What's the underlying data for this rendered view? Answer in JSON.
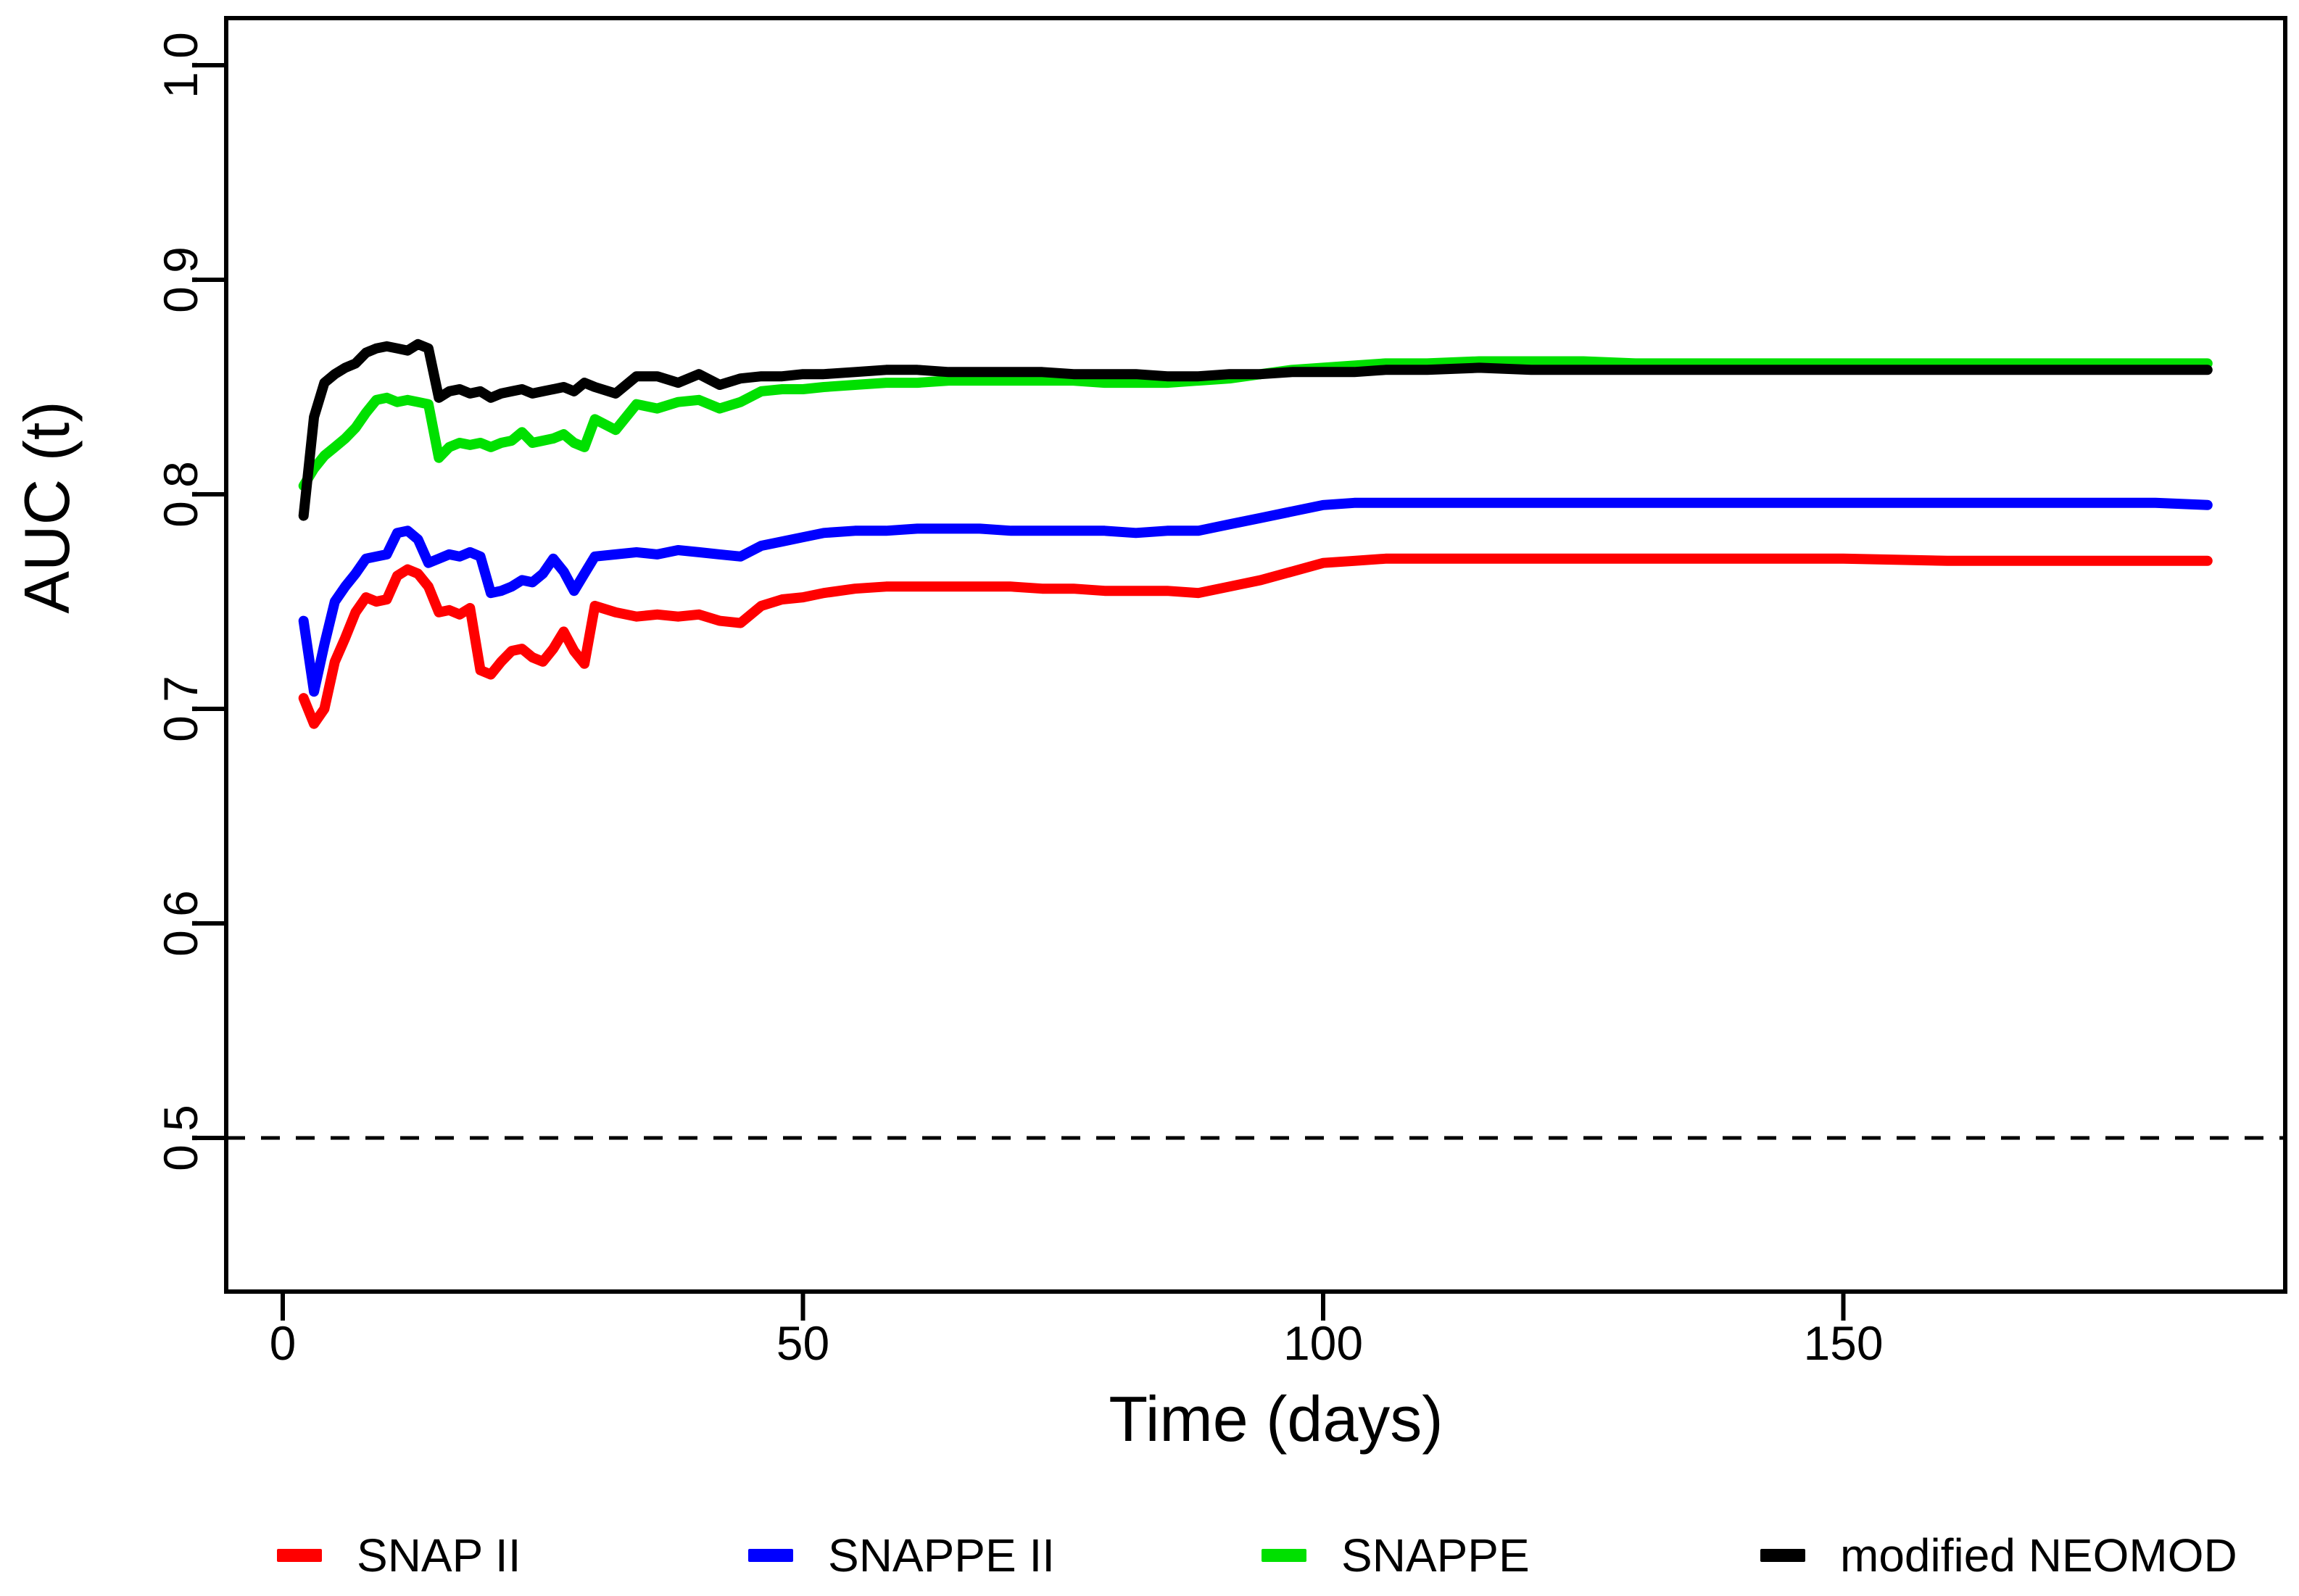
{
  "figure": {
    "background_color": "#ffffff",
    "y_axis": {
      "label": "AUC (t)",
      "tick_labels": [
        "1.0",
        "0.9",
        "0.8",
        "0.7",
        "0.6",
        "0.5"
      ]
    },
    "x_axis": {
      "label": "Time (days)",
      "tick_labels": [
        "0",
        "50",
        "100",
        "150"
      ]
    },
    "reference_line": {
      "value": 0.5,
      "style": "dashed",
      "color": "#000000"
    }
  },
  "chart_data": {
    "type": "line",
    "title": "",
    "xlabel": "Time (days)",
    "ylabel": "AUC (t)",
    "xlim": [
      -5.5,
      192.5
    ],
    "ylim": [
      0.428,
      1.022
    ],
    "x_ticks": [
      0,
      50,
      100,
      150
    ],
    "y_ticks": [
      1.0,
      0.9,
      0.8,
      0.7,
      0.6,
      0.5
    ],
    "reference_y": 0.5,
    "grid": false,
    "legend_position": "bottom",
    "x": [
      2,
      3,
      4,
      5,
      6,
      7,
      8,
      9,
      10,
      11,
      12,
      13,
      14,
      15,
      16,
      17,
      18,
      19,
      20,
      21,
      22,
      23,
      24,
      25,
      26,
      27,
      28,
      29,
      30,
      32,
      34,
      36,
      38,
      40,
      42,
      44,
      46,
      48,
      50,
      52,
      55,
      58,
      61,
      64,
      67,
      70,
      73,
      76,
      79,
      82,
      85,
      88,
      91,
      94,
      97,
      100,
      103,
      106,
      110,
      115,
      120,
      125,
      130,
      140,
      150,
      160,
      170,
      180,
      185
    ],
    "series": [
      {
        "name": "SNAP II",
        "color": "#ff0000",
        "values": [
          0.705,
          0.693,
          0.7,
          0.722,
          0.733,
          0.745,
          0.752,
          0.75,
          0.751,
          0.762,
          0.765,
          0.763,
          0.757,
          0.745,
          0.746,
          0.744,
          0.747,
          0.718,
          0.716,
          0.722,
          0.727,
          0.728,
          0.724,
          0.722,
          0.728,
          0.736,
          0.727,
          0.721,
          0.748,
          0.745,
          0.743,
          0.744,
          0.743,
          0.744,
          0.741,
          0.74,
          0.748,
          0.751,
          0.752,
          0.754,
          0.756,
          0.757,
          0.757,
          0.757,
          0.757,
          0.757,
          0.756,
          0.756,
          0.755,
          0.755,
          0.755,
          0.754,
          0.757,
          0.76,
          0.764,
          0.768,
          0.769,
          0.77,
          0.77,
          0.77,
          0.77,
          0.77,
          0.77,
          0.77,
          0.77,
          0.769,
          0.769,
          0.769,
          0.769
        ]
      },
      {
        "name": "SNAPPE II",
        "color": "#0000ff",
        "values": [
          0.741,
          0.708,
          0.73,
          0.75,
          0.757,
          0.763,
          0.77,
          0.771,
          0.772,
          0.782,
          0.783,
          0.779,
          0.768,
          0.77,
          0.772,
          0.771,
          0.773,
          0.771,
          0.754,
          0.755,
          0.757,
          0.76,
          0.759,
          0.763,
          0.77,
          0.764,
          0.755,
          0.763,
          0.771,
          0.772,
          0.773,
          0.772,
          0.774,
          0.773,
          0.772,
          0.771,
          0.776,
          0.778,
          0.78,
          0.782,
          0.783,
          0.783,
          0.784,
          0.784,
          0.784,
          0.783,
          0.783,
          0.783,
          0.783,
          0.782,
          0.783,
          0.783,
          0.786,
          0.789,
          0.792,
          0.795,
          0.796,
          0.796,
          0.796,
          0.796,
          0.796,
          0.796,
          0.796,
          0.796,
          0.796,
          0.796,
          0.796,
          0.796,
          0.795
        ]
      },
      {
        "name": "SNAPPE",
        "color": "#00e000",
        "values": [
          0.804,
          0.812,
          0.818,
          0.822,
          0.826,
          0.831,
          0.838,
          0.844,
          0.845,
          0.843,
          0.844,
          0.843,
          0.842,
          0.817,
          0.822,
          0.824,
          0.823,
          0.824,
          0.822,
          0.824,
          0.825,
          0.829,
          0.824,
          0.825,
          0.826,
          0.828,
          0.824,
          0.822,
          0.835,
          0.83,
          0.842,
          0.84,
          0.843,
          0.844,
          0.84,
          0.843,
          0.848,
          0.849,
          0.849,
          0.85,
          0.851,
          0.852,
          0.852,
          0.853,
          0.853,
          0.853,
          0.853,
          0.853,
          0.852,
          0.852,
          0.852,
          0.853,
          0.854,
          0.856,
          0.858,
          0.859,
          0.86,
          0.861,
          0.861,
          0.862,
          0.862,
          0.862,
          0.861,
          0.861,
          0.861,
          0.861,
          0.861,
          0.861,
          0.861
        ]
      },
      {
        "name": "modified NEOMOD",
        "color": "#000000",
        "values": [
          0.79,
          0.836,
          0.852,
          0.856,
          0.859,
          0.861,
          0.866,
          0.868,
          0.869,
          0.868,
          0.867,
          0.87,
          0.868,
          0.845,
          0.848,
          0.849,
          0.847,
          0.848,
          0.845,
          0.847,
          0.848,
          0.849,
          0.847,
          0.848,
          0.849,
          0.85,
          0.848,
          0.852,
          0.85,
          0.847,
          0.855,
          0.855,
          0.852,
          0.856,
          0.851,
          0.854,
          0.855,
          0.855,
          0.856,
          0.856,
          0.857,
          0.858,
          0.858,
          0.857,
          0.857,
          0.857,
          0.857,
          0.856,
          0.856,
          0.856,
          0.855,
          0.855,
          0.856,
          0.856,
          0.857,
          0.857,
          0.857,
          0.858,
          0.858,
          0.859,
          0.858,
          0.858,
          0.858,
          0.858,
          0.858,
          0.858,
          0.858,
          0.858,
          0.858
        ]
      }
    ]
  }
}
